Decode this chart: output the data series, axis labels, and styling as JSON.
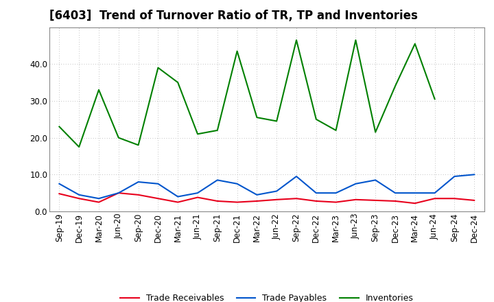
{
  "title": "[6403]  Trend of Turnover Ratio of TR, TP and Inventories",
  "x_labels": [
    "Sep-19",
    "Dec-19",
    "Mar-20",
    "Jun-20",
    "Sep-20",
    "Dec-20",
    "Mar-21",
    "Jun-21",
    "Sep-21",
    "Dec-21",
    "Mar-22",
    "Jun-22",
    "Sep-22",
    "Dec-22",
    "Mar-23",
    "Jun-23",
    "Sep-23",
    "Dec-23",
    "Mar-24",
    "Jun-24",
    "Sep-24",
    "Dec-24"
  ],
  "trade_receivables": [
    4.8,
    3.5,
    2.5,
    5.0,
    4.5,
    3.5,
    2.5,
    3.8,
    2.8,
    2.5,
    2.8,
    3.2,
    3.5,
    2.8,
    2.5,
    3.2,
    3.0,
    2.8,
    2.2,
    3.5,
    3.5,
    3.0
  ],
  "trade_payables": [
    7.5,
    4.5,
    3.5,
    5.0,
    8.0,
    7.5,
    4.0,
    5.0,
    8.5,
    7.5,
    4.5,
    5.5,
    9.5,
    5.0,
    5.0,
    7.5,
    8.5,
    5.0,
    5.0,
    5.0,
    9.5,
    10.0
  ],
  "inventories": [
    23.0,
    17.5,
    33.0,
    20.0,
    18.0,
    39.0,
    35.0,
    21.0,
    22.0,
    43.5,
    25.5,
    24.5,
    46.5,
    25.0,
    22.0,
    46.5,
    21.5,
    34.0,
    45.5,
    30.5,
    null,
    null
  ],
  "ylim": [
    0,
    50
  ],
  "yticks": [
    0.0,
    10.0,
    20.0,
    30.0,
    40.0
  ],
  "color_tr": "#e8001c",
  "color_tp": "#0055cc",
  "color_inv": "#008000",
  "legend_labels": [
    "Trade Receivables",
    "Trade Payables",
    "Inventories"
  ],
  "bg_color": "#ffffff",
  "plot_bg_color": "#ffffff",
  "title_fontsize": 12,
  "tick_fontsize": 8.5,
  "legend_fontsize": 9
}
